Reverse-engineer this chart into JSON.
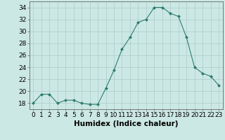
{
  "x": [
    0,
    1,
    2,
    3,
    4,
    5,
    6,
    7,
    8,
    9,
    10,
    11,
    12,
    13,
    14,
    15,
    16,
    17,
    18,
    19,
    20,
    21,
    22,
    23
  ],
  "y": [
    18,
    19.5,
    19.5,
    18,
    18.5,
    18.5,
    18,
    17.8,
    17.8,
    20.5,
    23.5,
    27,
    29,
    31.5,
    32,
    34,
    34,
    33,
    32.5,
    29,
    24,
    23,
    22.5,
    21
  ],
  "line_color": "#2e7d6e",
  "marker_color": "#2e7d6e",
  "bg_color": "#cce8e4",
  "grid_color": "#aaccc8",
  "xlabel": "Humidex (Indice chaleur)",
  "xlim": [
    -0.5,
    23.5
  ],
  "ylim": [
    17,
    35
  ],
  "yticks": [
    18,
    20,
    22,
    24,
    26,
    28,
    30,
    32,
    34
  ],
  "xticks": [
    0,
    1,
    2,
    3,
    4,
    5,
    6,
    7,
    8,
    9,
    10,
    11,
    12,
    13,
    14,
    15,
    16,
    17,
    18,
    19,
    20,
    21,
    22,
    23
  ],
  "tick_fontsize": 6.5,
  "label_fontsize": 7.5
}
